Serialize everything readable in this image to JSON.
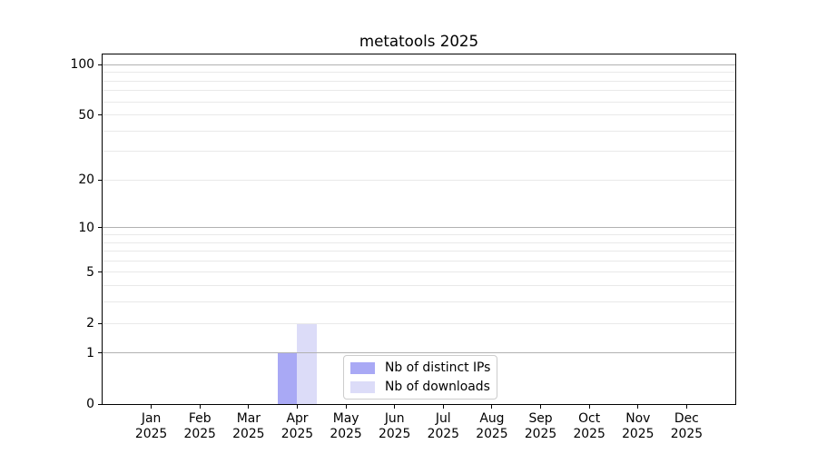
{
  "figure": {
    "title": "metatools 2025"
  },
  "colors": {
    "distinct_ips_bar": "#a9a9f5",
    "downloads_bar": "#dcdcf8",
    "major_grid": "#b2b2b2",
    "minor_grid": "#e9e9e9",
    "spine": "#000000",
    "text": "#000000",
    "background": "#ffffff",
    "legend_border": "#cccccc"
  },
  "chart_data": {
    "type": "bar",
    "title": "metatools 2025",
    "xlabel": "",
    "ylabel": "",
    "x_categories": [
      {
        "month": "Jan",
        "year": "2025"
      },
      {
        "month": "Feb",
        "year": "2025"
      },
      {
        "month": "Mar",
        "year": "2025"
      },
      {
        "month": "Apr",
        "year": "2025"
      },
      {
        "month": "May",
        "year": "2025"
      },
      {
        "month": "Jun",
        "year": "2025"
      },
      {
        "month": "Jul",
        "year": "2025"
      },
      {
        "month": "Aug",
        "year": "2025"
      },
      {
        "month": "Sep",
        "year": "2025"
      },
      {
        "month": "Oct",
        "year": "2025"
      },
      {
        "month": "Nov",
        "year": "2025"
      },
      {
        "month": "Dec",
        "year": "2025"
      }
    ],
    "series": [
      {
        "name": "Nb of distinct IPs",
        "color": "#a9a9f5",
        "values": [
          0,
          0,
          0,
          1,
          0,
          0,
          0,
          0,
          0,
          0,
          0,
          0
        ]
      },
      {
        "name": "Nb of downloads",
        "color": "#dcdcf8",
        "values": [
          0,
          0,
          0,
          2,
          0,
          0,
          0,
          0,
          0,
          0,
          0,
          0
        ]
      }
    ],
    "y_scale": "log1p",
    "ylim": [
      0,
      115
    ],
    "y_tick_labels": [
      0,
      1,
      2,
      5,
      10,
      20,
      50,
      100
    ],
    "y_major_gridlines": [
      1,
      10,
      100
    ],
    "y_minor_gridlines": [
      2,
      3,
      4,
      5,
      6,
      7,
      8,
      9,
      20,
      30,
      40,
      50,
      60,
      70,
      80,
      90
    ],
    "grid": "horizontal",
    "legend": {
      "location": "inside-lower-center",
      "entries": [
        "Nb of distinct IPs",
        "Nb of downloads"
      ]
    }
  }
}
